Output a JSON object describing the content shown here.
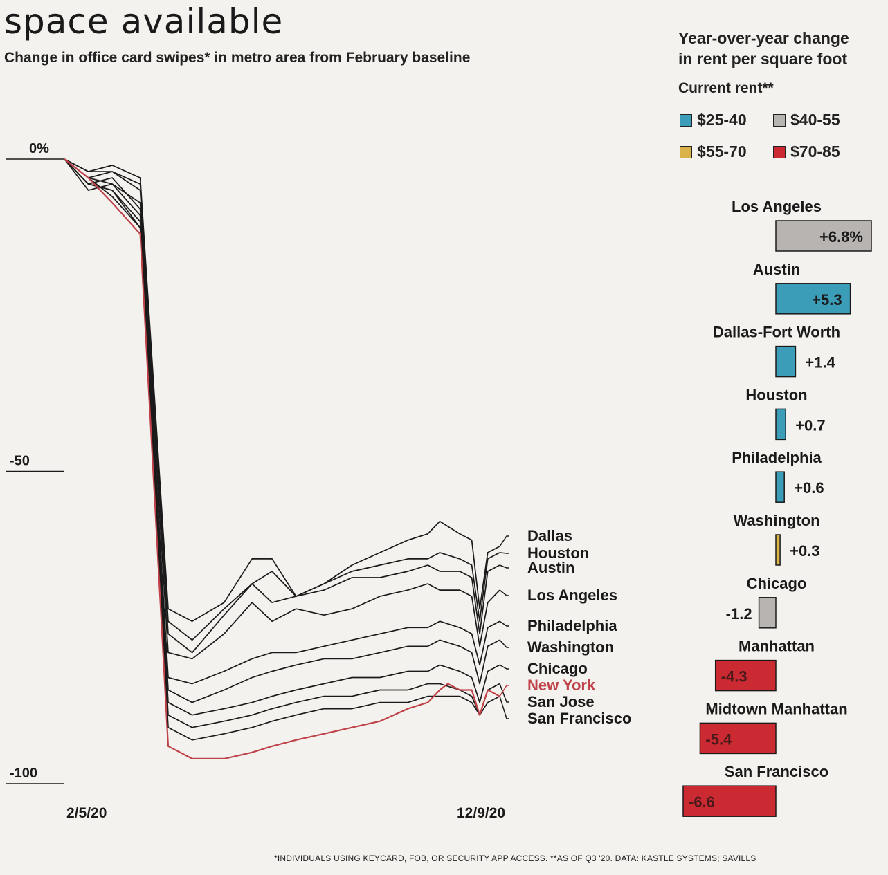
{
  "title": "space available",
  "subtitle": "Change in office card swipes* in metro area from February baseline",
  "footnote": "*INDIVIDUALS USING KEYCARD, FOB, OR SECURITY APP ACCESS. **AS OF Q3 '20. DATA: KASTLE SYSTEMS; SAVILLS",
  "colors": {
    "background": "#f4f2ef",
    "line": "#1a1a1a",
    "highlight": "#c0434a",
    "tier_25_40": "#3b9db8",
    "tier_40_55": "#b8b4b2",
    "tier_55_70": "#d9b24a",
    "tier_70_85": "#cc2a33"
  },
  "chart_data": [
    {
      "type": "line",
      "title": "Change in office card swipes* in metro area from February baseline",
      "xlabel": "",
      "ylabel": "",
      "unit": "%",
      "y_ticks": [
        "0%",
        "-50",
        "-100"
      ],
      "y_tick_values": [
        0,
        -50,
        -100
      ],
      "ylim": [
        -100,
        0
      ],
      "x_ticks": [
        "2/5/20",
        "12/9/20"
      ],
      "grid": false,
      "legend": "direct labels at line ends",
      "highlight_series": "New York",
      "series": [
        {
          "name": "Dallas",
          "points": [
            [
              0,
              0
            ],
            [
              6,
              -2
            ],
            [
              12,
              -1
            ],
            [
              19,
              -3
            ],
            [
              26,
              -72
            ],
            [
              32,
              -74
            ],
            [
              40,
              -71
            ],
            [
              47,
              -64
            ],
            [
              52,
              -64
            ],
            [
              58,
              -70
            ],
            [
              65,
              -68
            ],
            [
              72,
              -65
            ],
            [
              79,
              -63
            ],
            [
              86,
              -61
            ],
            [
              91,
              -60
            ],
            [
              94,
              -58
            ],
            [
              99,
              -60
            ],
            [
              102,
              -61
            ],
            [
              104,
              -72
            ],
            [
              106,
              -63
            ],
            [
              109,
              -62
            ]
          ]
        },
        {
          "name": "Houston",
          "points": [
            [
              0,
              0
            ],
            [
              6,
              -3
            ],
            [
              12,
              -2
            ],
            [
              19,
              -4
            ],
            [
              26,
              -74
            ],
            [
              32,
              -77
            ],
            [
              40,
              -72
            ],
            [
              47,
              -68
            ],
            [
              52,
              -71
            ],
            [
              58,
              -70
            ],
            [
              65,
              -68
            ],
            [
              72,
              -66
            ],
            [
              79,
              -65
            ],
            [
              86,
              -64
            ],
            [
              91,
              -64
            ],
            [
              94,
              -63
            ],
            [
              99,
              -64
            ],
            [
              102,
              -65
            ],
            [
              104,
              -74
            ],
            [
              106,
              -64
            ],
            [
              109,
              -63
            ]
          ]
        },
        {
          "name": "Austin",
          "points": [
            [
              0,
              0
            ],
            [
              6,
              -2
            ],
            [
              12,
              -2
            ],
            [
              19,
              -5
            ],
            [
              26,
              -76
            ],
            [
              32,
              -79
            ],
            [
              40,
              -73
            ],
            [
              47,
              -68
            ],
            [
              52,
              -66
            ],
            [
              58,
              -70
            ],
            [
              65,
              -69
            ],
            [
              72,
              -67
            ],
            [
              79,
              -67
            ],
            [
              86,
              -66
            ],
            [
              91,
              -65
            ],
            [
              94,
              -66
            ],
            [
              99,
              -66
            ],
            [
              102,
              -67
            ],
            [
              104,
              -76
            ],
            [
              106,
              -66
            ],
            [
              109,
              -65
            ]
          ]
        },
        {
          "name": "Los Angeles",
          "points": [
            [
              0,
              0
            ],
            [
              6,
              -3
            ],
            [
              12,
              -4
            ],
            [
              19,
              -7
            ],
            [
              26,
              -79
            ],
            [
              32,
              -80
            ],
            [
              40,
              -76
            ],
            [
              47,
              -71
            ],
            [
              52,
              -74
            ],
            [
              58,
              -72
            ],
            [
              65,
              -73
            ],
            [
              72,
              -72
            ],
            [
              79,
              -70
            ],
            [
              86,
              -69
            ],
            [
              91,
              -68
            ],
            [
              94,
              -69
            ],
            [
              99,
              -69
            ],
            [
              102,
              -70
            ],
            [
              104,
              -78
            ],
            [
              106,
              -71
            ],
            [
              109,
              -69
            ]
          ]
        },
        {
          "name": "Philadelphia",
          "points": [
            [
              0,
              0
            ],
            [
              6,
              -4
            ],
            [
              12,
              -3
            ],
            [
              19,
              -8
            ],
            [
              26,
              -83
            ],
            [
              32,
              -84
            ],
            [
              40,
              -82
            ],
            [
              47,
              -80
            ],
            [
              52,
              -79
            ],
            [
              58,
              -79
            ],
            [
              65,
              -78
            ],
            [
              72,
              -77
            ],
            [
              79,
              -76
            ],
            [
              86,
              -75
            ],
            [
              91,
              -75
            ],
            [
              94,
              -74
            ],
            [
              99,
              -75
            ],
            [
              102,
              -76
            ],
            [
              104,
              -81
            ],
            [
              106,
              -75
            ],
            [
              109,
              -74
            ]
          ]
        },
        {
          "name": "Washington",
          "points": [
            [
              0,
              0
            ],
            [
              6,
              -5
            ],
            [
              12,
              -4
            ],
            [
              19,
              -9
            ],
            [
              26,
              -85
            ],
            [
              32,
              -87
            ],
            [
              40,
              -85
            ],
            [
              47,
              -83
            ],
            [
              52,
              -82
            ],
            [
              58,
              -81
            ],
            [
              65,
              -80
            ],
            [
              72,
              -80
            ],
            [
              79,
              -79
            ],
            [
              86,
              -78
            ],
            [
              91,
              -78
            ],
            [
              94,
              -77
            ],
            [
              99,
              -78
            ],
            [
              102,
              -79
            ],
            [
              104,
              -84
            ],
            [
              106,
              -78
            ],
            [
              109,
              -77
            ]
          ]
        },
        {
          "name": "Chicago",
          "points": [
            [
              0,
              0
            ],
            [
              6,
              -4
            ],
            [
              12,
              -5
            ],
            [
              19,
              -10
            ],
            [
              26,
              -87
            ],
            [
              32,
              -89
            ],
            [
              40,
              -88
            ],
            [
              47,
              -87
            ],
            [
              52,
              -86
            ],
            [
              58,
              -85
            ],
            [
              65,
              -84
            ],
            [
              72,
              -83
            ],
            [
              79,
              -83
            ],
            [
              86,
              -82
            ],
            [
              91,
              -82
            ],
            [
              94,
              -81
            ],
            [
              99,
              -82
            ],
            [
              102,
              -83
            ],
            [
              104,
              -87
            ],
            [
              106,
              -82
            ],
            [
              109,
              -81
            ]
          ]
        },
        {
          "name": "San Jose",
          "points": [
            [
              0,
              0
            ],
            [
              6,
              -3
            ],
            [
              12,
              -6
            ],
            [
              19,
              -11
            ],
            [
              26,
              -89
            ],
            [
              32,
              -91
            ],
            [
              40,
              -90
            ],
            [
              47,
              -89
            ],
            [
              52,
              -88
            ],
            [
              58,
              -87
            ],
            [
              65,
              -86
            ],
            [
              72,
              -86
            ],
            [
              79,
              -85
            ],
            [
              86,
              -85
            ],
            [
              91,
              -84
            ],
            [
              94,
              -84
            ],
            [
              99,
              -85
            ],
            [
              102,
              -86
            ],
            [
              104,
              -89
            ],
            [
              106,
              -85
            ],
            [
              109,
              -84
            ]
          ]
        },
        {
          "name": "San Francisco",
          "points": [
            [
              0,
              0
            ],
            [
              6,
              -4
            ],
            [
              12,
              -5
            ],
            [
              19,
              -11
            ],
            [
              26,
              -91
            ],
            [
              32,
              -93
            ],
            [
              40,
              -92
            ],
            [
              47,
              -91
            ],
            [
              52,
              -90
            ],
            [
              58,
              -89
            ],
            [
              65,
              -88
            ],
            [
              72,
              -88
            ],
            [
              79,
              -87
            ],
            [
              86,
              -87
            ],
            [
              91,
              -86
            ],
            [
              94,
              -86
            ],
            [
              99,
              -86
            ],
            [
              102,
              -87
            ],
            [
              104,
              -89
            ],
            [
              106,
              -87
            ],
            [
              109,
              -86
            ]
          ]
        },
        {
          "name": "New York",
          "points": [
            [
              0,
              0
            ],
            [
              6,
              -3
            ],
            [
              12,
              -7
            ],
            [
              19,
              -12
            ],
            [
              26,
              -94
            ],
            [
              32,
              -96
            ],
            [
              40,
              -96
            ],
            [
              47,
              -95
            ],
            [
              52,
              -94
            ],
            [
              58,
              -93
            ],
            [
              65,
              -92
            ],
            [
              72,
              -91
            ],
            [
              79,
              -90
            ],
            [
              86,
              -88
            ],
            [
              91,
              -87
            ],
            [
              94,
              -85
            ],
            [
              96,
              -84
            ],
            [
              99,
              -85
            ],
            [
              102,
              -85
            ],
            [
              104,
              -89
            ],
            [
              106,
              -85
            ],
            [
              109,
              -86
            ]
          ]
        }
      ]
    },
    {
      "type": "bar",
      "title": "Year-over-year change in rent per square foot",
      "legend_title": "Current rent**",
      "legend": [
        {
          "label": "$25-40",
          "tier": "tier_25_40"
        },
        {
          "label": "$40-55",
          "tier": "tier_40_55"
        },
        {
          "label": "$55-70",
          "tier": "tier_55_70"
        },
        {
          "label": "$70-85",
          "tier": "tier_70_85"
        }
      ],
      "categories": [
        "Los Angeles",
        "Austin",
        "Dallas-Fort Worth",
        "Houston",
        "Philadelphia",
        "Washington",
        "Chicago",
        "Manhattan",
        "Midtown Manhattan",
        "San Francisco"
      ],
      "values": [
        6.8,
        5.3,
        1.4,
        0.7,
        0.6,
        0.3,
        -1.2,
        -4.3,
        -5.4,
        -6.6
      ],
      "value_labels": [
        "+6.8%",
        "+5.3",
        "+1.4",
        "+0.7",
        "+0.6",
        "+0.3",
        "-1.2",
        "-4.3",
        "-5.4",
        "-6.6"
      ],
      "tiers": [
        "tier_40_55",
        "tier_25_40",
        "tier_25_40",
        "tier_25_40",
        "tier_25_40",
        "tier_55_70",
        "tier_40_55",
        "tier_70_85",
        "tier_70_85",
        "tier_70_85"
      ]
    }
  ]
}
